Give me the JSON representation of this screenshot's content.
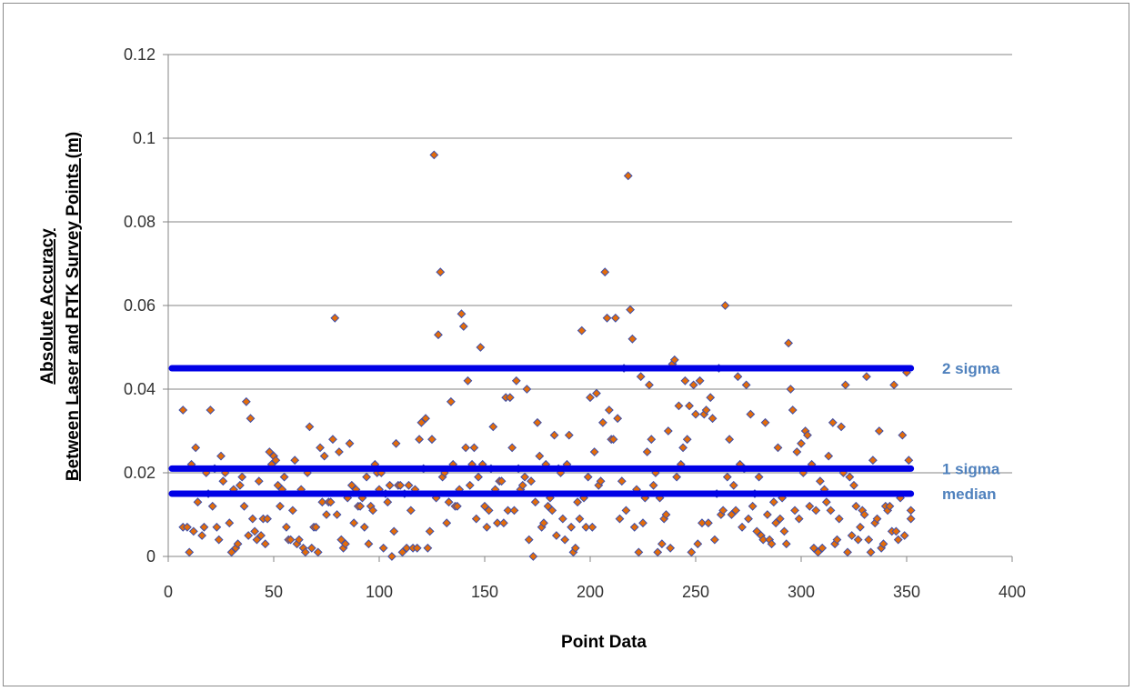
{
  "chart_data": {
    "type": "scatter",
    "xlabel": "Point Data",
    "ylabel_line1": "Absolute Accuracy",
    "ylabel_line2": "Between Laser and RTK Survey Points (m)",
    "xlim": [
      0,
      400
    ],
    "ylim": [
      0,
      0.12
    ],
    "x_ticks": [
      "0",
      "50",
      "100",
      "150",
      "200",
      "250",
      "300",
      "350",
      "400"
    ],
    "y_ticks": [
      "0",
      "0.02",
      "0.04",
      "0.06",
      "0.08",
      "0.1",
      "0.12"
    ],
    "grid": "horizontal",
    "marker": {
      "shape": "diamond",
      "fill": "#e46c0a",
      "stroke": "#3f4fa8"
    },
    "reference_lines": [
      {
        "label": "2 sigma",
        "y": 0.045,
        "x_range": [
          0,
          352
        ],
        "color": "#0000e6"
      },
      {
        "label": "1 sigma",
        "y": 0.021,
        "x_range": [
          0,
          352
        ],
        "color": "#0000e6"
      },
      {
        "label": "median",
        "y": 0.015,
        "x_range": [
          0,
          352
        ],
        "color": "#0000e6"
      }
    ],
    "label_color": "#4f81bd",
    "points": [
      [
        7,
        0.035
      ],
      [
        7,
        0.007
      ],
      [
        9,
        0.007
      ],
      [
        10,
        0.001
      ],
      [
        11,
        0.022
      ],
      [
        12,
        0.006
      ],
      [
        13,
        0.026
      ],
      [
        14,
        0.013
      ],
      [
        16,
        0.005
      ],
      [
        17,
        0.007
      ],
      [
        18,
        0.02
      ],
      [
        19,
        0.015
      ],
      [
        20,
        0.035
      ],
      [
        21,
        0.012
      ],
      [
        22,
        0.021
      ],
      [
        23,
        0.007
      ],
      [
        24,
        0.004
      ],
      [
        25,
        0.024
      ],
      [
        26,
        0.018
      ],
      [
        27,
        0.02
      ],
      [
        29,
        0.008
      ],
      [
        30,
        0.001
      ],
      [
        31,
        0.016
      ],
      [
        32,
        0.002
      ],
      [
        33,
        0.003
      ],
      [
        34,
        0.017
      ],
      [
        35,
        0.019
      ],
      [
        36,
        0.012
      ],
      [
        37,
        0.037
      ],
      [
        38,
        0.005
      ],
      [
        39,
        0.033
      ],
      [
        40,
        0.009
      ],
      [
        41,
        0.006
      ],
      [
        42,
        0.004
      ],
      [
        43,
        0.018
      ],
      [
        44,
        0.005
      ],
      [
        45,
        0.009
      ],
      [
        46,
        0.003
      ],
      [
        47,
        0.009
      ],
      [
        48,
        0.025
      ],
      [
        49,
        0.022
      ],
      [
        50,
        0.024
      ],
      [
        51,
        0.023
      ],
      [
        52,
        0.017
      ],
      [
        53,
        0.012
      ],
      [
        54,
        0.016
      ],
      [
        55,
        0.019
      ],
      [
        56,
        0.007
      ],
      [
        57,
        0.004
      ],
      [
        58,
        0.004
      ],
      [
        59,
        0.011
      ],
      [
        60,
        0.023
      ],
      [
        61,
        0.003
      ],
      [
        62,
        0.004
      ],
      [
        63,
        0.016
      ],
      [
        64,
        0.002
      ],
      [
        65,
        0.001
      ],
      [
        66,
        0.02
      ],
      [
        67,
        0.031
      ],
      [
        68,
        0.002
      ],
      [
        69,
        0.007
      ],
      [
        70,
        0.007
      ],
      [
        71,
        0.001
      ],
      [
        72,
        0.026
      ],
      [
        73,
        0.013
      ],
      [
        74,
        0.024
      ],
      [
        75,
        0.01
      ],
      [
        76,
        0.013
      ],
      [
        77,
        0.013
      ],
      [
        78,
        0.028
      ],
      [
        79,
        0.057
      ],
      [
        80,
        0.01
      ],
      [
        81,
        0.025
      ],
      [
        82,
        0.004
      ],
      [
        83,
        0.002
      ],
      [
        84,
        0.003
      ],
      [
        85,
        0.014
      ],
      [
        86,
        0.027
      ],
      [
        87,
        0.017
      ],
      [
        88,
        0.008
      ],
      [
        89,
        0.016
      ],
      [
        90,
        0.012
      ],
      [
        91,
        0.012
      ],
      [
        92,
        0.014
      ],
      [
        93,
        0.007
      ],
      [
        94,
        0.019
      ],
      [
        95,
        0.003
      ],
      [
        96,
        0.012
      ],
      [
        97,
        0.011
      ],
      [
        98,
        0.022
      ],
      [
        99,
        0.02
      ],
      [
        100,
        0.016
      ],
      [
        101,
        0.02
      ],
      [
        102,
        0.002
      ],
      [
        103,
        0.015
      ],
      [
        104,
        0.013
      ],
      [
        105,
        0.017
      ],
      [
        106,
        0
      ],
      [
        107,
        0.006
      ],
      [
        108,
        0.027
      ],
      [
        109,
        0.017
      ],
      [
        110,
        0.017
      ],
      [
        111,
        0.001
      ],
      [
        112,
        0.015
      ],
      [
        113,
        0.002
      ],
      [
        114,
        0.017
      ],
      [
        115,
        0.011
      ],
      [
        116,
        0.002
      ],
      [
        117,
        0.016
      ],
      [
        118,
        0.002
      ],
      [
        119,
        0.028
      ],
      [
        120,
        0.032
      ],
      [
        121,
        0.021
      ],
      [
        122,
        0.033
      ],
      [
        123,
        0.002
      ],
      [
        124,
        0.006
      ],
      [
        125,
        0.028
      ],
      [
        126,
        0.096
      ],
      [
        127,
        0.014
      ],
      [
        128,
        0.053
      ],
      [
        129,
        0.068
      ],
      [
        130,
        0.019
      ],
      [
        131,
        0.02
      ],
      [
        132,
        0.008
      ],
      [
        133,
        0.013
      ],
      [
        134,
        0.037
      ],
      [
        135,
        0.022
      ],
      [
        136,
        0.012
      ],
      [
        137,
        0.012
      ],
      [
        138,
        0.016
      ],
      [
        139,
        0.058
      ],
      [
        140,
        0.055
      ],
      [
        141,
        0.026
      ],
      [
        142,
        0.042
      ],
      [
        143,
        0.017
      ],
      [
        144,
        0.022
      ],
      [
        145,
        0.026
      ],
      [
        146,
        0.009
      ],
      [
        147,
        0.019
      ],
      [
        148,
        0.05
      ],
      [
        149,
        0.022
      ],
      [
        150,
        0.012
      ],
      [
        151,
        0.007
      ],
      [
        152,
        0.011
      ],
      [
        153,
        0.021
      ],
      [
        154,
        0.031
      ],
      [
        155,
        0.016
      ],
      [
        156,
        0.008
      ],
      [
        157,
        0.018
      ],
      [
        158,
        0.018
      ],
      [
        159,
        0.008
      ],
      [
        160,
        0.038
      ],
      [
        161,
        0.011
      ],
      [
        162,
        0.038
      ],
      [
        163,
        0.026
      ],
      [
        164,
        0.011
      ],
      [
        165,
        0.042
      ],
      [
        166,
        0.021
      ],
      [
        167,
        0.016
      ],
      [
        168,
        0.017
      ],
      [
        169,
        0.019
      ],
      [
        170,
        0.04
      ],
      [
        171,
        0.004
      ],
      [
        172,
        0.018
      ],
      [
        173,
        0
      ],
      [
        174,
        0.013
      ],
      [
        175,
        0.032
      ],
      [
        176,
        0.024
      ],
      [
        177,
        0.007
      ],
      [
        178,
        0.008
      ],
      [
        179,
        0.022
      ],
      [
        180,
        0.012
      ],
      [
        181,
        0.014
      ],
      [
        182,
        0.011
      ],
      [
        183,
        0.029
      ],
      [
        184,
        0.005
      ],
      [
        185,
        0.021
      ],
      [
        186,
        0.02
      ],
      [
        187,
        0.009
      ],
      [
        188,
        0.004
      ],
      [
        189,
        0.022
      ],
      [
        190,
        0.029
      ],
      [
        191,
        0.007
      ],
      [
        192,
        0.001
      ],
      [
        193,
        0.002
      ],
      [
        194,
        0.013
      ],
      [
        195,
        0.009
      ],
      [
        196,
        0.054
      ],
      [
        197,
        0.014
      ],
      [
        198,
        0.007
      ],
      [
        199,
        0.019
      ],
      [
        200,
        0.038
      ],
      [
        201,
        0.007
      ],
      [
        202,
        0.025
      ],
      [
        203,
        0.039
      ],
      [
        204,
        0.017
      ],
      [
        205,
        0.018
      ],
      [
        206,
        0.032
      ],
      [
        207,
        0.068
      ],
      [
        208,
        0.057
      ],
      [
        209,
        0.035
      ],
      [
        210,
        0.028
      ],
      [
        211,
        0.028
      ],
      [
        212,
        0.057
      ],
      [
        213,
        0.033
      ],
      [
        214,
        0.009
      ],
      [
        215,
        0.018
      ],
      [
        216,
        0.045
      ],
      [
        217,
        0.011
      ],
      [
        218,
        0.091
      ],
      [
        219,
        0.059
      ],
      [
        220,
        0.052
      ],
      [
        221,
        0.007
      ],
      [
        222,
        0.016
      ],
      [
        223,
        0.001
      ],
      [
        224,
        0.043
      ],
      [
        225,
        0.008
      ],
      [
        226,
        0.014
      ],
      [
        227,
        0.025
      ],
      [
        228,
        0.041
      ],
      [
        229,
        0.028
      ],
      [
        230,
        0.017
      ],
      [
        231,
        0.02
      ],
      [
        232,
        0.001
      ],
      [
        233,
        0.014
      ],
      [
        234,
        0.003
      ],
      [
        235,
        0.009
      ],
      [
        236,
        0.01
      ],
      [
        237,
        0.03
      ],
      [
        238,
        0.002
      ],
      [
        239,
        0.046
      ],
      [
        240,
        0.047
      ],
      [
        241,
        0.019
      ],
      [
        242,
        0.036
      ],
      [
        243,
        0.022
      ],
      [
        244,
        0.026
      ],
      [
        245,
        0.042
      ],
      [
        246,
        0.028
      ],
      [
        247,
        0.036
      ],
      [
        248,
        0.001
      ],
      [
        249,
        0.041
      ],
      [
        250,
        0.034
      ],
      [
        251,
        0.003
      ],
      [
        252,
        0.042
      ],
      [
        253,
        0.008
      ],
      [
        254,
        0.034
      ],
      [
        255,
        0.035
      ],
      [
        256,
        0.008
      ],
      [
        257,
        0.038
      ],
      [
        258,
        0.033
      ],
      [
        259,
        0.004
      ],
      [
        260,
        0.015
      ],
      [
        261,
        0.045
      ],
      [
        262,
        0.01
      ],
      [
        263,
        0.011
      ],
      [
        264,
        0.06
      ],
      [
        265,
        0.019
      ],
      [
        266,
        0.028
      ],
      [
        267,
        0.01
      ],
      [
        268,
        0.017
      ],
      [
        269,
        0.011
      ],
      [
        270,
        0.043
      ],
      [
        271,
        0.022
      ],
      [
        272,
        0.007
      ],
      [
        273,
        0.021
      ],
      [
        274,
        0.041
      ],
      [
        275,
        0.009
      ],
      [
        276,
        0.034
      ],
      [
        277,
        0.012
      ],
      [
        278,
        0.015
      ],
      [
        279,
        0.006
      ],
      [
        280,
        0.019
      ],
      [
        281,
        0.005
      ],
      [
        282,
        0.004
      ],
      [
        283,
        0.032
      ],
      [
        284,
        0.01
      ],
      [
        285,
        0.004
      ],
      [
        286,
        0.003
      ],
      [
        287,
        0.013
      ],
      [
        288,
        0.008
      ],
      [
        289,
        0.026
      ],
      [
        290,
        0.009
      ],
      [
        291,
        0.014
      ],
      [
        292,
        0.006
      ],
      [
        293,
        0.003
      ],
      [
        294,
        0.051
      ],
      [
        295,
        0.04
      ],
      [
        296,
        0.035
      ],
      [
        297,
        0.011
      ],
      [
        298,
        0.025
      ],
      [
        299,
        0.009
      ],
      [
        300,
        0.027
      ],
      [
        301,
        0.02
      ],
      [
        302,
        0.03
      ],
      [
        303,
        0.029
      ],
      [
        304,
        0.012
      ],
      [
        305,
        0.022
      ],
      [
        306,
        0.002
      ],
      [
        307,
        0.011
      ],
      [
        308,
        0.001
      ],
      [
        309,
        0.018
      ],
      [
        310,
        0.002
      ],
      [
        311,
        0.016
      ],
      [
        312,
        0.013
      ],
      [
        313,
        0.024
      ],
      [
        314,
        0.011
      ],
      [
        315,
        0.032
      ],
      [
        316,
        0.003
      ],
      [
        317,
        0.004
      ],
      [
        318,
        0.009
      ],
      [
        319,
        0.031
      ],
      [
        320,
        0.02
      ],
      [
        321,
        0.041
      ],
      [
        322,
        0.001
      ],
      [
        323,
        0.019
      ],
      [
        324,
        0.005
      ],
      [
        325,
        0.017
      ],
      [
        326,
        0.012
      ],
      [
        327,
        0.004
      ],
      [
        328,
        0.007
      ],
      [
        329,
        0.011
      ],
      [
        330,
        0.01
      ],
      [
        331,
        0.043
      ],
      [
        332,
        0.004
      ],
      [
        333,
        0.001
      ],
      [
        334,
        0.023
      ],
      [
        335,
        0.008
      ],
      [
        336,
        0.009
      ],
      [
        337,
        0.03
      ],
      [
        338,
        0.002
      ],
      [
        339,
        0.003
      ],
      [
        340,
        0.012
      ],
      [
        341,
        0.011
      ],
      [
        342,
        0.012
      ],
      [
        343,
        0.006
      ],
      [
        344,
        0.041
      ],
      [
        345,
        0.006
      ],
      [
        346,
        0.004
      ],
      [
        347,
        0.014
      ],
      [
        348,
        0.029
      ],
      [
        349,
        0.005
      ],
      [
        350,
        0.044
      ],
      [
        351,
        0.023
      ],
      [
        352,
        0.011
      ],
      [
        352,
        0.009
      ]
    ]
  }
}
